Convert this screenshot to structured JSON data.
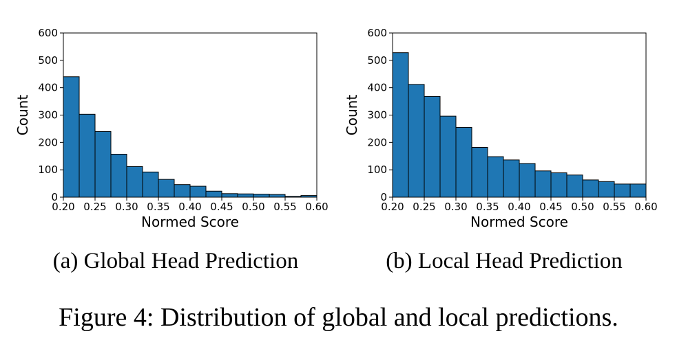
{
  "figure_caption": "Figure 4: Distribution of global and local predictions.",
  "colors": {
    "bar_fill": "#1f77b4",
    "bar_edge": "#000000"
  },
  "chart_data": [
    {
      "type": "bar",
      "subcaption": "(a) Global Head Prediction",
      "xlabel": "Normed Score",
      "ylabel": "Count",
      "xlim": [
        0.2,
        0.6
      ],
      "ylim": [
        0,
        600
      ],
      "xticks": [
        "0.20",
        "0.25",
        "0.30",
        "0.35",
        "0.40",
        "0.45",
        "0.50",
        "0.55",
        "0.60"
      ],
      "yticks": [
        "0",
        "100",
        "200",
        "300",
        "400",
        "500",
        "600"
      ],
      "bin_edges": [
        0.2,
        0.225,
        0.25,
        0.275,
        0.3,
        0.325,
        0.35,
        0.375,
        0.4,
        0.425,
        0.45,
        0.475,
        0.5,
        0.525,
        0.55,
        0.575,
        0.6
      ],
      "values": [
        440,
        303,
        240,
        157,
        112,
        92,
        65,
        46,
        40,
        22,
        13,
        12,
        11,
        10,
        3,
        6
      ],
      "grid": false
    },
    {
      "type": "bar",
      "subcaption": "(b) Local Head Prediction",
      "xlabel": "Normed Score",
      "ylabel": "Count",
      "xlim": [
        0.2,
        0.6
      ],
      "ylim": [
        0,
        600
      ],
      "xticks": [
        "0.20",
        "0.25",
        "0.30",
        "0.35",
        "0.40",
        "0.45",
        "0.50",
        "0.55",
        "0.60"
      ],
      "yticks": [
        "0",
        "100",
        "200",
        "300",
        "400",
        "500",
        "600"
      ],
      "bin_edges": [
        0.2,
        0.225,
        0.25,
        0.275,
        0.3,
        0.325,
        0.35,
        0.375,
        0.4,
        0.425,
        0.45,
        0.475,
        0.5,
        0.525,
        0.55,
        0.575,
        0.6
      ],
      "values": [
        528,
        412,
        368,
        296,
        255,
        182,
        148,
        136,
        123,
        96,
        89,
        81,
        63,
        57,
        48,
        48
      ],
      "grid": false
    }
  ]
}
